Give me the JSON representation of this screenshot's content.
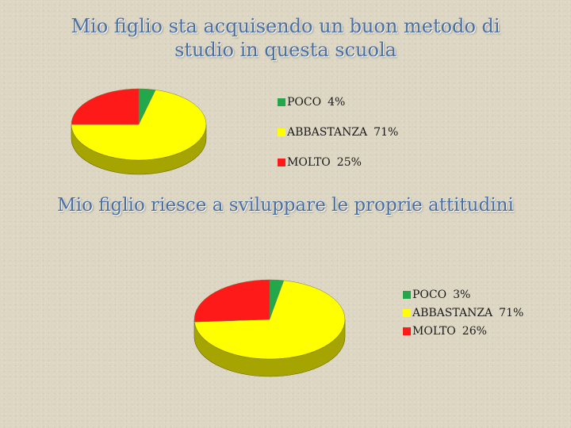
{
  "chart_data": [
    {
      "type": "pie",
      "title_lines": [
        "Mio figlio sta acquisendo un buon metodo di",
        "studio in questa scuola"
      ],
      "categories": [
        "POCO",
        "ABBASTANZA",
        "MOLTO"
      ],
      "values": [
        4,
        71,
        25
      ],
      "value_labels": [
        "4%",
        "71%",
        "25%"
      ],
      "colors": [
        "#22a84a",
        "#ffff00",
        "#ff1a1a"
      ],
      "side_color": "#a5a400",
      "legend_position": "right"
    },
    {
      "type": "pie",
      "title_lines": [
        "Mio figlio riesce a sviluppare le proprie attitudini"
      ],
      "categories": [
        "POCO",
        "ABBASTANZA",
        "MOLTO"
      ],
      "values": [
        3,
        71,
        26
      ],
      "value_labels": [
        "3%",
        "71%",
        "26%"
      ],
      "colors": [
        "#22a84a",
        "#ffff00",
        "#ff1a1a"
      ],
      "side_color": "#a5a400",
      "legend_position": "right"
    }
  ]
}
